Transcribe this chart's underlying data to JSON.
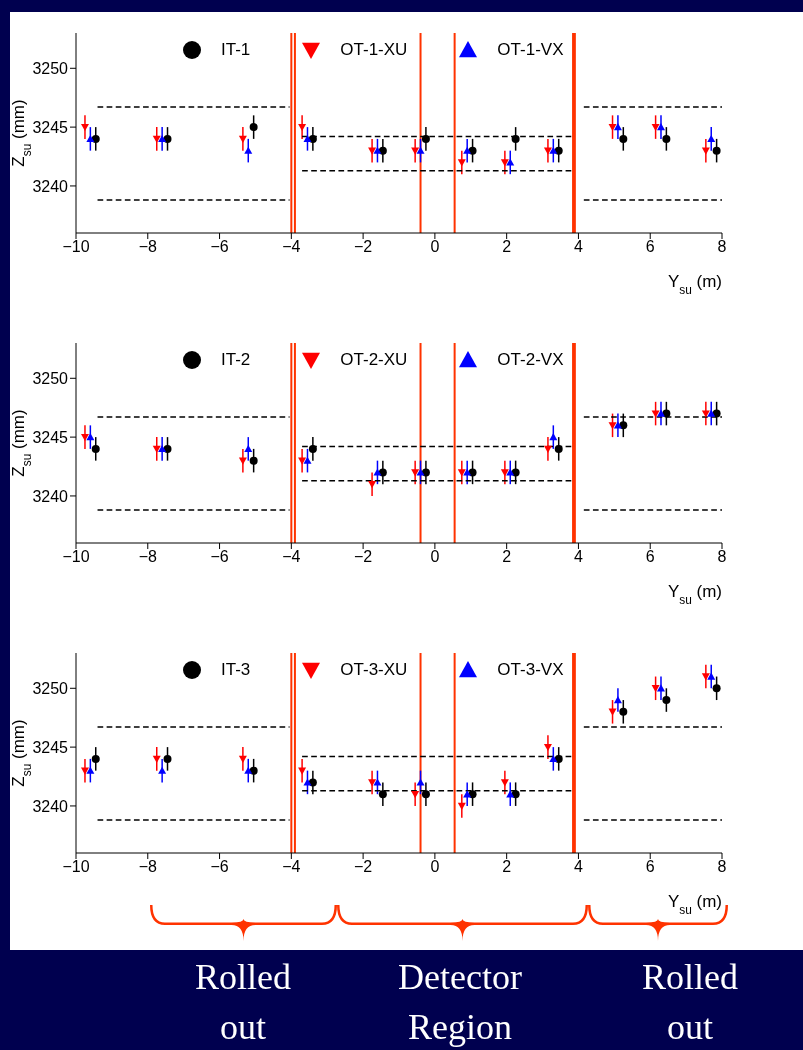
{
  "chart_data": [
    {
      "type": "scatter",
      "xlabel": "Y$_{su}$ (m)",
      "ylabel": "Z$_{su}$ (mm)",
      "xlim": [
        -10,
        8
      ],
      "xticks": [
        -10,
        -8,
        -6,
        -4,
        -2,
        0,
        2,
        4,
        6,
        8
      ],
      "ylim": [
        3236,
        3253
      ],
      "yticks": [
        3240,
        3245,
        3250
      ],
      "legend": "top",
      "grid": false,
      "series": [
        {
          "name": "IT-1",
          "color": "#000000",
          "marker": "circle",
          "x": [
            -9.45,
            -7.45,
            -5.05,
            -3.4,
            -1.45,
            -0.25,
            1.05,
            2.25,
            3.45,
            5.25,
            6.45,
            7.85
          ],
          "values": [
            3244,
            3244,
            3245,
            3244,
            3243,
            3244,
            3243,
            3244,
            3243,
            3244,
            3244,
            3243
          ],
          "errors": [
            1,
            1,
            1,
            1,
            1,
            1,
            1,
            1,
            1,
            1,
            1,
            1
          ]
        },
        {
          "name": "OT-1-XU",
          "color": "#ff0000",
          "marker": "triangle-down",
          "x": [
            -9.75,
            -7.75,
            -5.35,
            -3.7,
            -1.75,
            -0.55,
            0.75,
            1.95,
            3.15,
            4.95,
            6.15,
            7.55
          ],
          "values": [
            3245,
            3244,
            3244,
            3245,
            3243,
            3243,
            3242,
            3242,
            3243,
            3245,
            3245,
            3243
          ],
          "errors": [
            1,
            1,
            1,
            1,
            1,
            1,
            1,
            1,
            1,
            1,
            1,
            1
          ]
        },
        {
          "name": "OT-1-VX",
          "color": "#0000ff",
          "marker": "triangle",
          "x": [
            -9.6,
            -7.6,
            -5.2,
            -3.55,
            -1.6,
            -0.4,
            0.9,
            2.1,
            3.3,
            5.1,
            6.3,
            7.7
          ],
          "values": [
            3244,
            3244,
            3243,
            3244,
            3243,
            3243,
            3243,
            3242,
            3243,
            3245,
            3245,
            3244
          ],
          "errors": [
            1,
            1,
            1,
            1,
            1,
            1,
            1,
            1,
            1,
            1,
            1,
            1
          ]
        },
        {
          "type": "line",
          "color": "#000000",
          "line_style": "dashed",
          "marker": "none",
          "x": [
            -9.4,
            -4.05,
            0,
            4.15,
            8
          ],
          "values": [
            3246.7,
            3246.7,
            null,
            3246.7,
            3246.7
          ]
        },
        {
          "type": "line",
          "color": "#000000",
          "line_style": "dashed",
          "marker": "none",
          "x": [
            -9.4,
            -4.05,
            0,
            4.15,
            8
          ],
          "values": [
            3238.8,
            3238.8,
            null,
            3238.8,
            3238.8
          ]
        },
        {
          "type": "line",
          "color": "#000000",
          "line_style": "dashed",
          "marker": "none",
          "x": [
            -3.7,
            3.8
          ],
          "values": [
            3244.2,
            3244.2
          ]
        },
        {
          "type": "line",
          "color": "#000000",
          "line_style": "dashed",
          "marker": "none",
          "x": [
            -3.7,
            3.8
          ],
          "values": [
            3241.3,
            3241.3
          ]
        }
      ],
      "ref_lines": [
        {
          "axis": "x",
          "value": -4,
          "color": "#ff3300"
        },
        {
          "axis": "x",
          "value": -3.9,
          "color": "#ff3300"
        },
        {
          "axis": "x",
          "value": -0.4,
          "color": "#ff3300"
        },
        {
          "axis": "x",
          "value": 0.55,
          "color": "#ff3300"
        },
        {
          "axis": "x",
          "value": 3.85,
          "color": "#ff3300"
        },
        {
          "axis": "x",
          "value": 3.9,
          "color": "#ff3300"
        }
      ]
    },
    {
      "type": "scatter",
      "xlabel": "Y$_{su}$ (m)",
      "ylabel": "Z$_{su}$ (mm)",
      "xlim": [
        -10,
        8
      ],
      "xticks": [
        -10,
        -8,
        -6,
        -4,
        -2,
        0,
        2,
        4,
        6,
        8
      ],
      "ylim": [
        3236,
        3253
      ],
      "yticks": [
        3240,
        3245,
        3250
      ],
      "legend": "top",
      "grid": false,
      "series": [
        {
          "name": "IT-2",
          "color": "#000000",
          "marker": "circle",
          "x": [
            -9.45,
            -7.45,
            -5.05,
            -3.4,
            -1.45,
            -0.25,
            1.05,
            2.25,
            3.45,
            5.25,
            6.45,
            7.85
          ],
          "values": [
            3244,
            3244,
            3243,
            3244,
            3242,
            3242,
            3242,
            3242,
            3244,
            3246,
            3247,
            3247
          ],
          "errors": [
            1,
            1,
            1,
            1,
            1,
            1,
            1,
            1,
            1,
            1,
            1,
            1
          ]
        },
        {
          "name": "OT-2-XU",
          "color": "#ff0000",
          "marker": "triangle-down",
          "x": [
            -9.75,
            -7.75,
            -5.35,
            -3.7,
            -1.75,
            -0.55,
            0.75,
            1.95,
            3.15,
            4.95,
            6.15,
            7.55
          ],
          "values": [
            3245,
            3244,
            3243,
            3243,
            3241,
            3242,
            3242,
            3242,
            3244,
            3246,
            3247,
            3247
          ],
          "errors": [
            1,
            1,
            1,
            1,
            1,
            1,
            1,
            1,
            1,
            1,
            1,
            1
          ]
        },
        {
          "name": "OT-2-VX",
          "color": "#0000ff",
          "marker": "triangle",
          "x": [
            -9.6,
            -7.6,
            -5.2,
            -3.55,
            -1.6,
            -0.4,
            0.9,
            2.1,
            3.3,
            5.1,
            6.3,
            7.7
          ],
          "values": [
            3245,
            3244,
            3244,
            3243,
            3242,
            3242,
            3242,
            3242,
            3245,
            3246,
            3247,
            3247
          ],
          "errors": [
            1,
            1,
            1,
            1,
            1,
            1,
            1,
            1,
            1,
            1,
            1,
            1
          ]
        },
        {
          "type": "line",
          "color": "#000000",
          "line_style": "dashed",
          "marker": "none",
          "x": [
            -9.4,
            -4.05,
            0,
            4.15,
            8
          ],
          "values": [
            3246.7,
            3246.7,
            null,
            3246.7,
            3246.7
          ]
        },
        {
          "type": "line",
          "color": "#000000",
          "line_style": "dashed",
          "marker": "none",
          "x": [
            -9.4,
            -4.05,
            0,
            4.15,
            8
          ],
          "values": [
            3238.8,
            3238.8,
            null,
            3238.8,
            3238.8
          ]
        },
        {
          "type": "line",
          "color": "#000000",
          "line_style": "dashed",
          "marker": "none",
          "x": [
            -3.7,
            3.8
          ],
          "values": [
            3244.2,
            3244.2
          ]
        },
        {
          "type": "line",
          "color": "#000000",
          "line_style": "dashed",
          "marker": "none",
          "x": [
            -3.7,
            3.8
          ],
          "values": [
            3241.3,
            3241.3
          ]
        }
      ],
      "ref_lines": [
        {
          "axis": "x",
          "value": -4,
          "color": "#ff3300"
        },
        {
          "axis": "x",
          "value": -3.9,
          "color": "#ff3300"
        },
        {
          "axis": "x",
          "value": -0.4,
          "color": "#ff3300"
        },
        {
          "axis": "x",
          "value": 0.55,
          "color": "#ff3300"
        },
        {
          "axis": "x",
          "value": 3.85,
          "color": "#ff3300"
        },
        {
          "axis": "x",
          "value": 3.9,
          "color": "#ff3300"
        }
      ]
    },
    {
      "type": "scatter",
      "xlabel": "Y$_{su}$ (m)",
      "ylabel": "Z$_{su}$ (mm)",
      "xlim": [
        -10,
        8
      ],
      "xticks": [
        -10,
        -8,
        -6,
        -4,
        -2,
        0,
        2,
        4,
        6,
        8
      ],
      "ylim": [
        3236,
        3253
      ],
      "yticks": [
        3240,
        3245,
        3250
      ],
      "legend": "top",
      "grid": false,
      "series": [
        {
          "name": "IT-3",
          "color": "#000000",
          "marker": "circle",
          "x": [
            -9.45,
            -7.45,
            -5.05,
            -3.4,
            -1.45,
            -0.25,
            1.05,
            2.25,
            3.45,
            5.25,
            6.45,
            7.85
          ],
          "values": [
            3244,
            3244,
            3243,
            3242,
            3241,
            3241,
            3241,
            3241,
            3244,
            3248,
            3249,
            3250
          ],
          "errors": [
            1,
            1,
            1,
            1,
            1,
            1,
            1,
            1,
            1,
            1,
            1,
            1
          ]
        },
        {
          "name": "OT-3-XU",
          "color": "#ff0000",
          "marker": "triangle-down",
          "x": [
            -9.75,
            -7.75,
            -5.35,
            -3.7,
            -1.75,
            -0.55,
            0.75,
            1.95,
            3.15,
            4.95,
            6.15,
            7.55
          ],
          "values": [
            3243,
            3244,
            3244,
            3243,
            3242,
            3241,
            3240,
            3242,
            3245,
            3248,
            3250,
            3251
          ],
          "errors": [
            1,
            1,
            1,
            1,
            1,
            1,
            1,
            1,
            1,
            1,
            1,
            1
          ]
        },
        {
          "name": "OT-3-VX",
          "color": "#0000ff",
          "marker": "triangle",
          "x": [
            -9.6,
            -7.6,
            -5.2,
            -3.55,
            -1.6,
            -0.4,
            0.9,
            2.1,
            3.3,
            5.1,
            6.3,
            7.7
          ],
          "values": [
            3243,
            3243,
            3243,
            3242,
            3242,
            3242,
            3241,
            3241,
            3244,
            3249,
            3250,
            3251
          ],
          "errors": [
            1,
            1,
            1,
            1,
            1,
            1,
            1,
            1,
            1,
            1,
            1,
            1
          ]
        },
        {
          "type": "line",
          "color": "#000000",
          "line_style": "dashed",
          "marker": "none",
          "x": [
            -9.4,
            -4.05,
            0,
            4.15,
            8
          ],
          "values": [
            3246.7,
            3246.7,
            null,
            3246.7,
            3246.7
          ]
        },
        {
          "type": "line",
          "color": "#000000",
          "line_style": "dashed",
          "marker": "none",
          "x": [
            -9.4,
            -4.05,
            0,
            4.15,
            8
          ],
          "values": [
            3238.8,
            3238.8,
            null,
            3238.8,
            3238.8
          ]
        },
        {
          "type": "line",
          "color": "#000000",
          "line_style": "dashed",
          "marker": "none",
          "x": [
            -3.7,
            3.8
          ],
          "values": [
            3244.2,
            3244.2
          ]
        },
        {
          "type": "line",
          "color": "#000000",
          "line_style": "dashed",
          "marker": "none",
          "x": [
            -3.7,
            3.8
          ],
          "values": [
            3241.3,
            3241.3
          ]
        }
      ],
      "ref_lines": [
        {
          "axis": "x",
          "value": -4,
          "color": "#ff3300"
        },
        {
          "axis": "x",
          "value": -3.9,
          "color": "#ff3300"
        },
        {
          "axis": "x",
          "value": -0.4,
          "color": "#ff3300"
        },
        {
          "axis": "x",
          "value": 0.55,
          "color": "#ff3300"
        },
        {
          "axis": "x",
          "value": 3.85,
          "color": "#ff3300"
        },
        {
          "axis": "x",
          "value": 3.9,
          "color": "#ff3300"
        }
      ],
      "annotations": [
        "Rolled out",
        "Detector Region",
        "Rolled out"
      ]
    }
  ]
}
